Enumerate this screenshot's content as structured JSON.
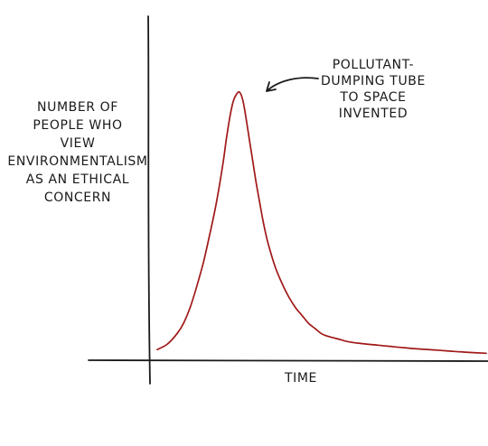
{
  "chart_data": {
    "type": "line",
    "ylabel_lines": [
      "NUMBER OF",
      "PEOPLE WHO",
      "VIEW",
      "ENVIRONMENTALISM",
      "AS AN ETHICAL",
      "CONCERN"
    ],
    "xlabel": "TIME",
    "annotation_lines": [
      "POLLUTANT-",
      "DUMPING TUBE",
      "TO SPACE",
      "INVENTED"
    ],
    "axis_color": "#1a1a1a",
    "line_color": "#a01818",
    "ticks_shown": false,
    "grid": false,
    "series": [
      {
        "x": [
          0,
          3,
          6,
          8,
          10,
          12,
          14,
          16,
          18,
          20,
          21,
          22,
          23,
          24,
          25,
          26,
          27,
          28,
          29,
          30,
          31,
          32,
          33,
          34,
          36,
          38,
          40,
          42,
          44,
          46,
          48,
          50,
          52,
          55,
          58,
          62,
          66,
          70,
          75,
          80,
          85,
          90,
          95,
          100
        ],
        "y": [
          2,
          4,
          8,
          12,
          18,
          26,
          35,
          46,
          58,
          73,
          82,
          90,
          96,
          99,
          100,
          97,
          90,
          82,
          74,
          66,
          59,
          52,
          46,
          41,
          33,
          27,
          22,
          18,
          15,
          12,
          10,
          8,
          7,
          6,
          5,
          4.3,
          3.8,
          3.3,
          2.7,
          2.2,
          1.8,
          1.3,
          0.9,
          0.6
        ]
      }
    ],
    "xlim": [
      0,
      100
    ],
    "ylim": [
      0,
      100
    ]
  }
}
